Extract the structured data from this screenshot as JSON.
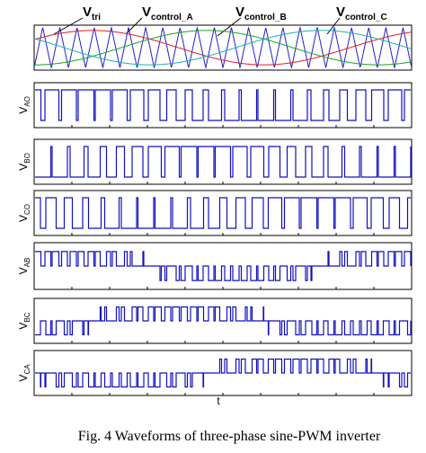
{
  "top_labels": [
    {
      "main": "V",
      "sub": "tri"
    },
    {
      "main": "V",
      "sub": "control_A"
    },
    {
      "main": "V",
      "sub": "control_B"
    },
    {
      "main": "V",
      "sub": "control_C"
    }
  ],
  "panels": [
    {
      "main": "V",
      "sub": "AO"
    },
    {
      "main": "V",
      "sub": "BO"
    },
    {
      "main": "V",
      "sub": "CO"
    },
    {
      "main": "V",
      "sub": "AB"
    },
    {
      "main": "V",
      "sub": "BC"
    },
    {
      "main": "V",
      "sub": "CA"
    }
  ],
  "x_label": "t",
  "caption": "Fig. 4 Waveforms of three-phase sine-PWM inverter"
}
